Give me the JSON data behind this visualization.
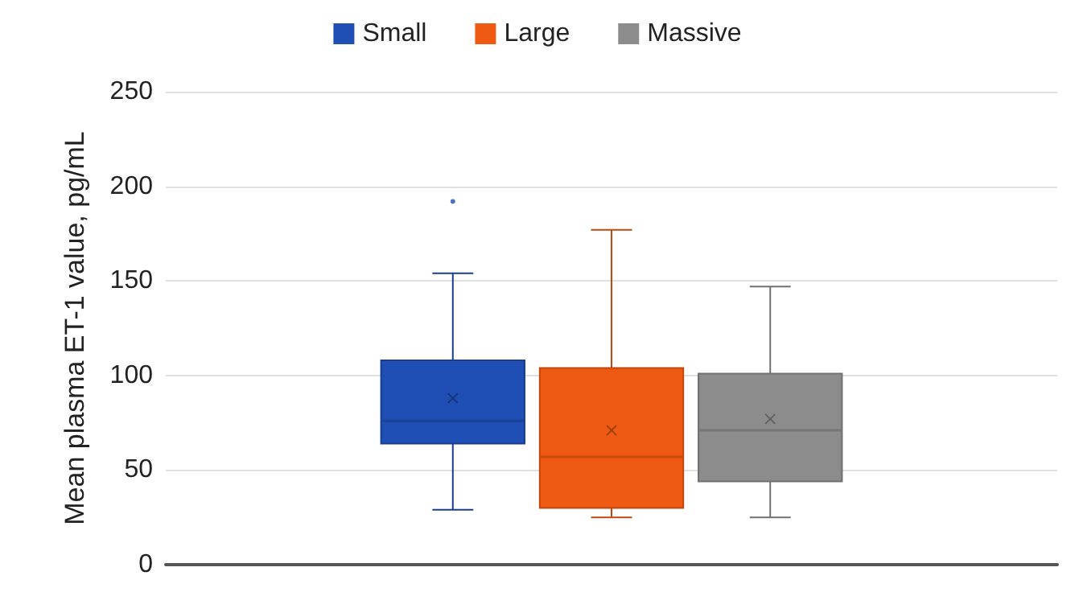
{
  "chart_data": {
    "type": "box",
    "ylabel": "Mean plasma ET-1 value, pg/mL",
    "categories": [
      null
    ],
    "series": [
      {
        "name": "Small",
        "color": "#1f4eb4",
        "boxes": [
          {
            "low": 29,
            "q1": 64,
            "median": 76,
            "q3": 108,
            "high": 154,
            "mean": 88,
            "outliers": [
              192
            ]
          }
        ]
      },
      {
        "name": "Large",
        "color": "#ee5a12",
        "boxes": [
          {
            "low": 25,
            "q1": 30,
            "median": 57,
            "q3": 104,
            "high": 177,
            "mean": 71
          }
        ]
      },
      {
        "name": "Massive",
        "color": "#8c8c8c",
        "boxes": [
          {
            "low": 25,
            "q1": 44,
            "median": 71,
            "q3": 101,
            "high": 147,
            "mean": 77
          }
        ]
      }
    ],
    "ylim": [
      0,
      250
    ],
    "yticks": [
      0,
      50,
      100,
      150,
      200,
      250
    ],
    "grid": "y",
    "legend": "top"
  }
}
